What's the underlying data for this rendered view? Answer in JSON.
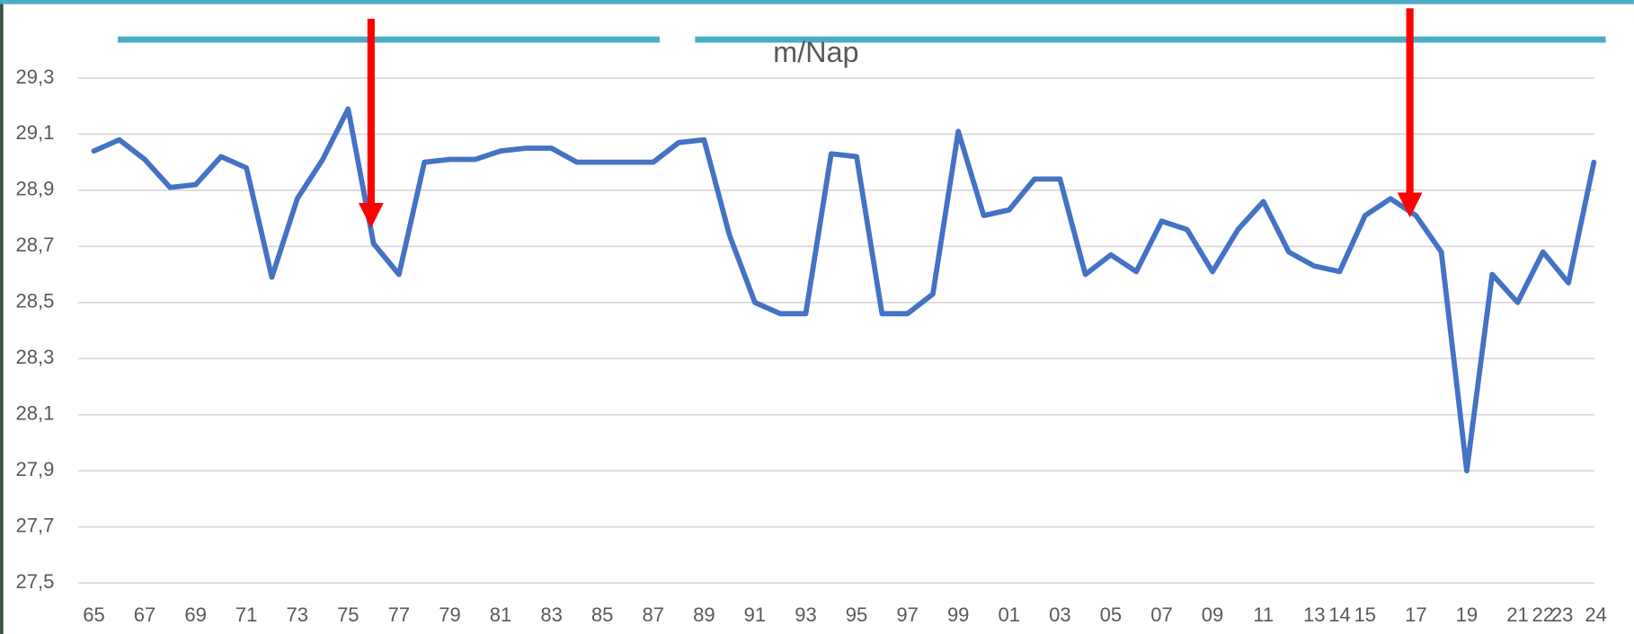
{
  "chart_data": {
    "type": "line",
    "title": "m/Nap",
    "categories": [
      "65",
      null,
      "67",
      null,
      "69",
      null,
      "71",
      null,
      "73",
      null,
      "75",
      null,
      "77",
      null,
      "79",
      null,
      "81",
      null,
      "83",
      null,
      "85",
      null,
      "87",
      null,
      "89",
      null,
      "91",
      null,
      "93",
      null,
      "95",
      null,
      "97",
      null,
      "99",
      null,
      "01",
      null,
      "03",
      null,
      "05",
      null,
      "07",
      null,
      "09",
      null,
      "11",
      null,
      "13",
      "14",
      "15",
      null,
      "17",
      null,
      "19",
      null,
      "21",
      "22",
      "23",
      "24"
    ],
    "series": [
      {
        "name": "m/Nap",
        "color": "#4472c4",
        "values": [
          29.04,
          29.08,
          29.01,
          28.91,
          28.92,
          29.02,
          28.98,
          28.59,
          28.87,
          29.01,
          29.19,
          28.71,
          28.6,
          29.0,
          29.01,
          29.01,
          29.04,
          29.05,
          29.05,
          29.0,
          29.0,
          29.0,
          29.0,
          29.07,
          29.08,
          28.74,
          28.5,
          28.46,
          28.46,
          29.03,
          29.02,
          28.46,
          28.46,
          28.53,
          29.11,
          28.81,
          28.83,
          28.94,
          28.94,
          28.6,
          28.67,
          28.61,
          28.79,
          28.76,
          28.61,
          28.76,
          28.86,
          28.68,
          28.63,
          28.61,
          28.81,
          28.87,
          28.81,
          28.68,
          27.9,
          28.6,
          28.5,
          28.68,
          28.57,
          29.0
        ]
      }
    ],
    "ylim": [
      27.5,
      29.3
    ],
    "yticks": [
      {
        "value": 27.5,
        "label": "27,5"
      },
      {
        "value": 27.7,
        "label": "27,7"
      },
      {
        "value": 27.9,
        "label": "27,9"
      },
      {
        "value": 28.1,
        "label": "28,1"
      },
      {
        "value": 28.3,
        "label": "28,3"
      },
      {
        "value": 28.5,
        "label": "28,5"
      },
      {
        "value": 28.7,
        "label": "28,7"
      },
      {
        "value": 28.9,
        "label": "28,9"
      },
      {
        "value": 29.1,
        "label": "29,1"
      },
      {
        "value": 29.3,
        "label": "29,3"
      }
    ],
    "grid": true
  }
}
